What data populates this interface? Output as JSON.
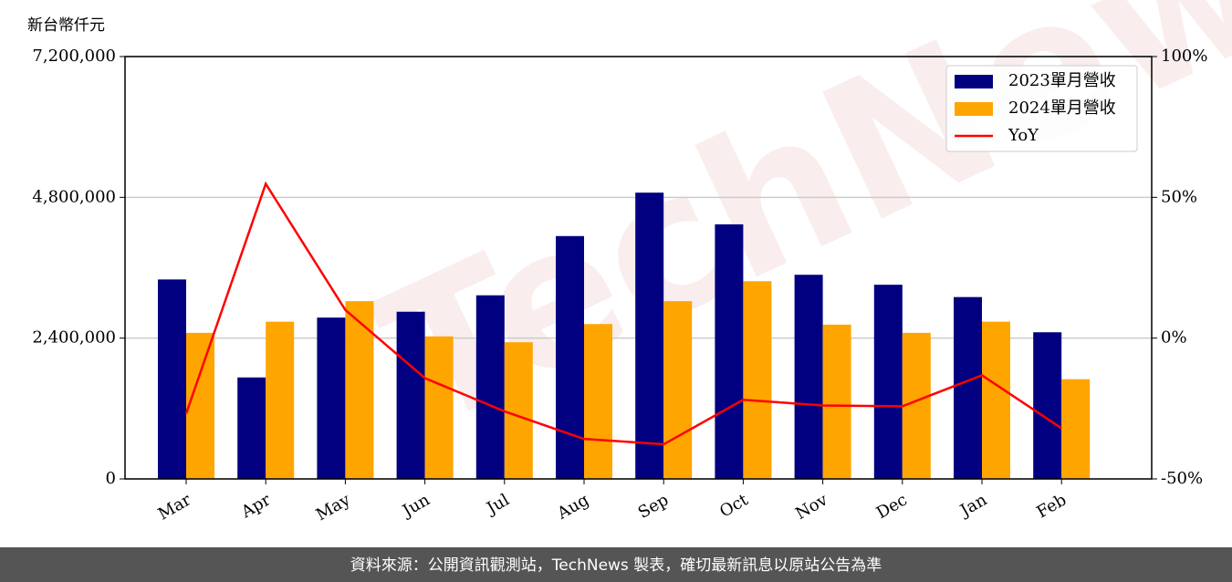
{
  "chart_data": {
    "type": "bar",
    "y_label": "新台幣仟元",
    "watermark": "TechNews",
    "categories": [
      "Mar",
      "Apr",
      "May",
      "Jun",
      "Jul",
      "Aug",
      "Sep",
      "Oct",
      "Nov",
      "Dec",
      "Jan",
      "Feb"
    ],
    "series": [
      {
        "name": "2023單月營收",
        "color": "#000080",
        "type": "bar",
        "values": [
          3400000,
          1730000,
          2750000,
          2850000,
          3130000,
          4140000,
          4880000,
          4340000,
          3480000,
          3310000,
          3100000,
          2500000
        ]
      },
      {
        "name": "2024單月營收",
        "color": "#ffa500",
        "type": "bar",
        "values": [
          2490000,
          2680000,
          3030000,
          2430000,
          2330000,
          2640000,
          3030000,
          3370000,
          2630000,
          2490000,
          2680000,
          1700000
        ]
      },
      {
        "name": "YoY",
        "color": "#ff0000",
        "type": "line",
        "axis": "y2",
        "values": [
          -26.8,
          54.8,
          10,
          -14.2,
          -26,
          -35.8,
          -37.7,
          -21.9,
          -23.9,
          -24.2,
          -13.2,
          -32
        ]
      }
    ],
    "ylim": [
      0,
      7200000
    ],
    "yticks": [
      {
        "value": 0,
        "label": "0"
      },
      {
        "value": 2400000,
        "label": "2,400,000"
      },
      {
        "value": 4800000,
        "label": "4,800,000"
      },
      {
        "value": 7200000,
        "label": "7,200,000"
      }
    ],
    "y2lim": [
      -50,
      100
    ],
    "y2ticks": [
      {
        "value": -50,
        "label": "-50%"
      },
      {
        "value": 0,
        "label": "0%"
      },
      {
        "value": 50,
        "label": "50%"
      },
      {
        "value": 100,
        "label": "100%"
      }
    ],
    "grid": true,
    "legend": "upper right",
    "footer": "資料來源：公開資訊觀測站，TechNews 製表，確切最新訊息以原站公告為準"
  }
}
